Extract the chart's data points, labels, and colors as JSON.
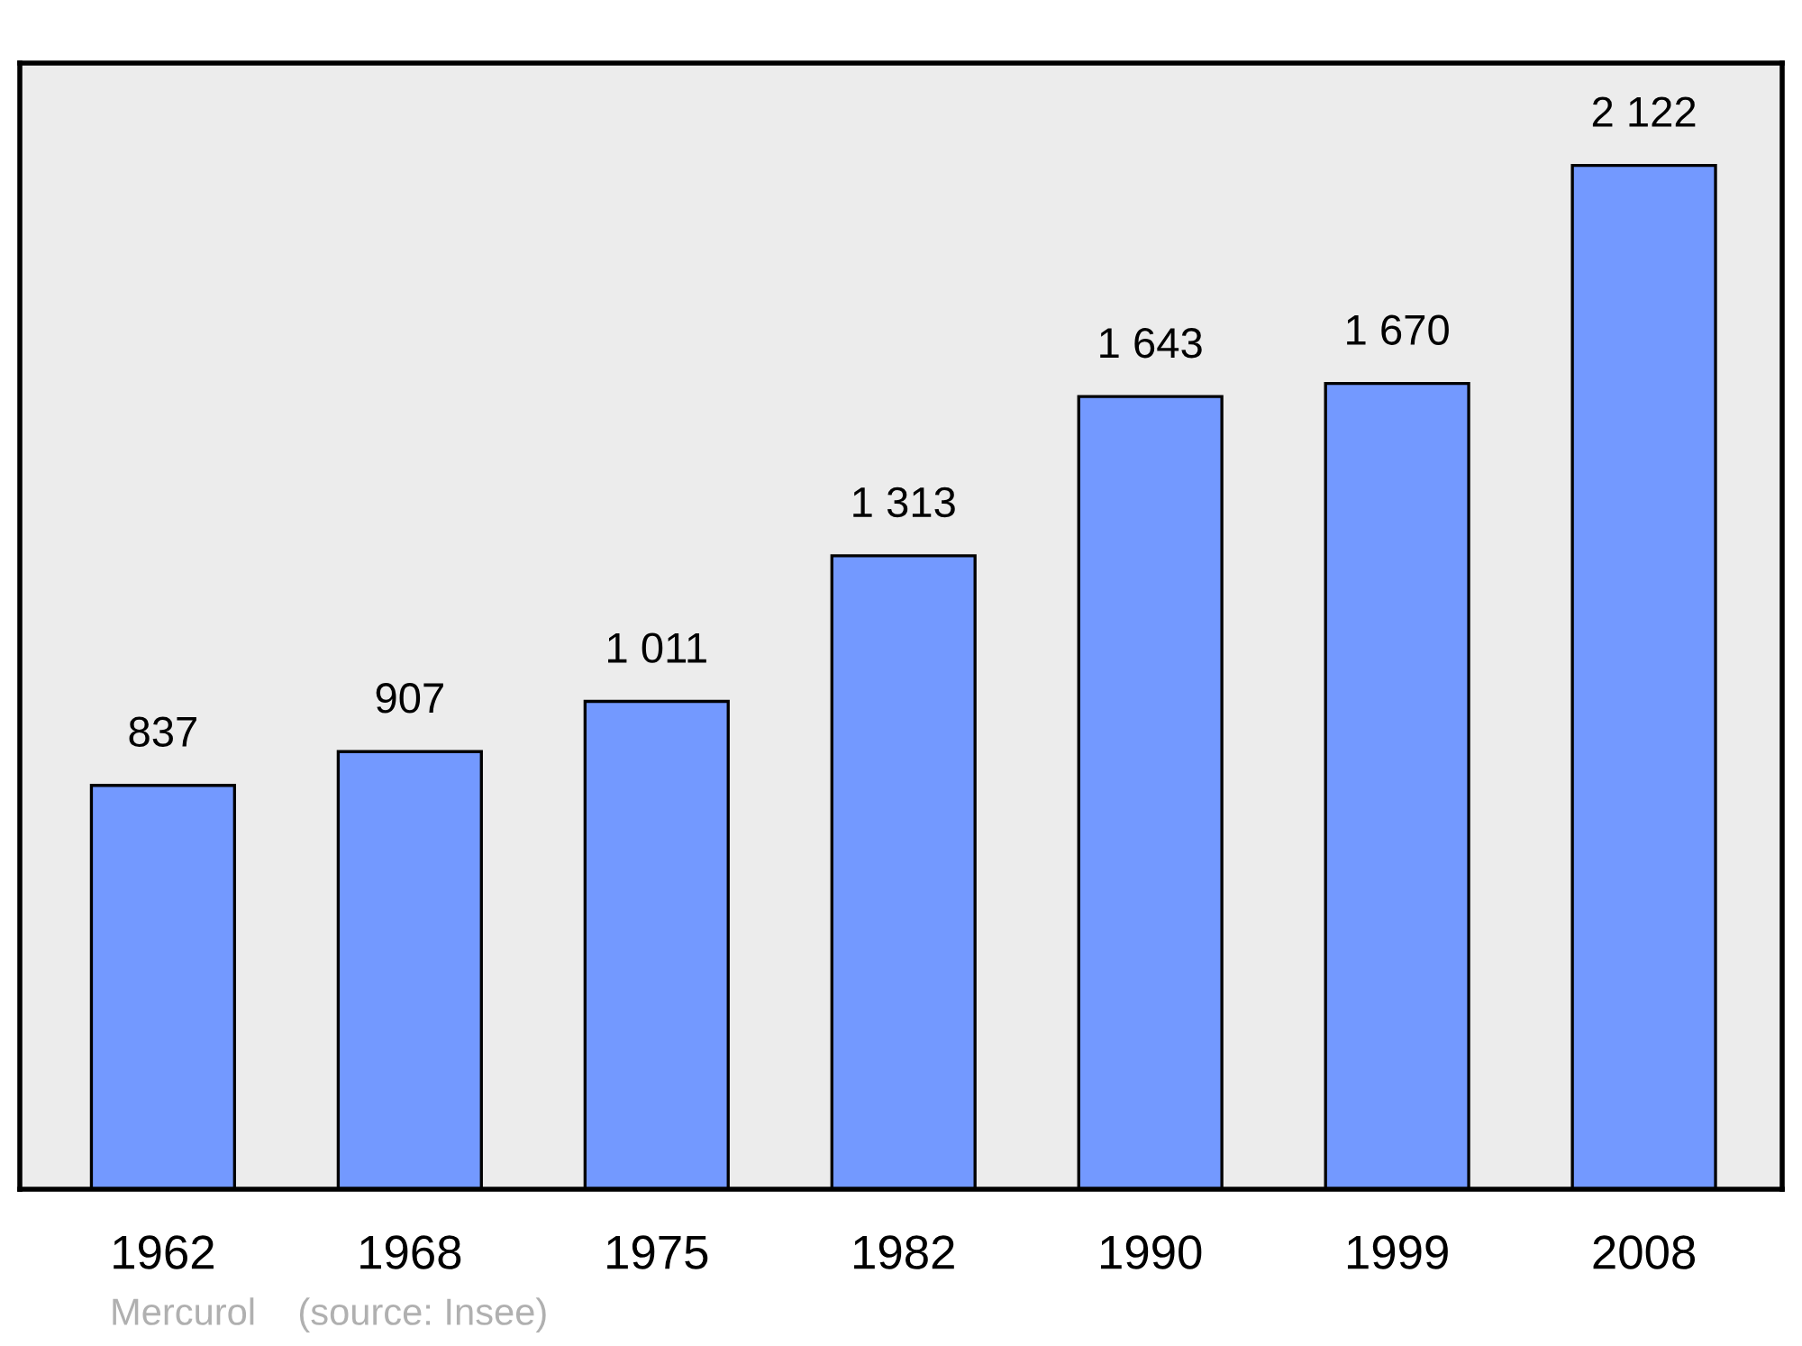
{
  "chart_data": {
    "type": "bar",
    "categories": [
      "1962",
      "1968",
      "1975",
      "1982",
      "1990",
      "1999",
      "2008"
    ],
    "values": [
      837,
      907,
      1011,
      1313,
      1643,
      1670,
      2122
    ],
    "color": "#7399ff",
    "value_labels": [
      "837",
      "907",
      "1 011",
      "1 313",
      "1 643",
      "1 670",
      "2 122"
    ],
    "tick_labels": "x",
    "grid": false,
    "legend": false,
    "annotations": [
      "Mercurol    (source: Insee)"
    ]
  }
}
